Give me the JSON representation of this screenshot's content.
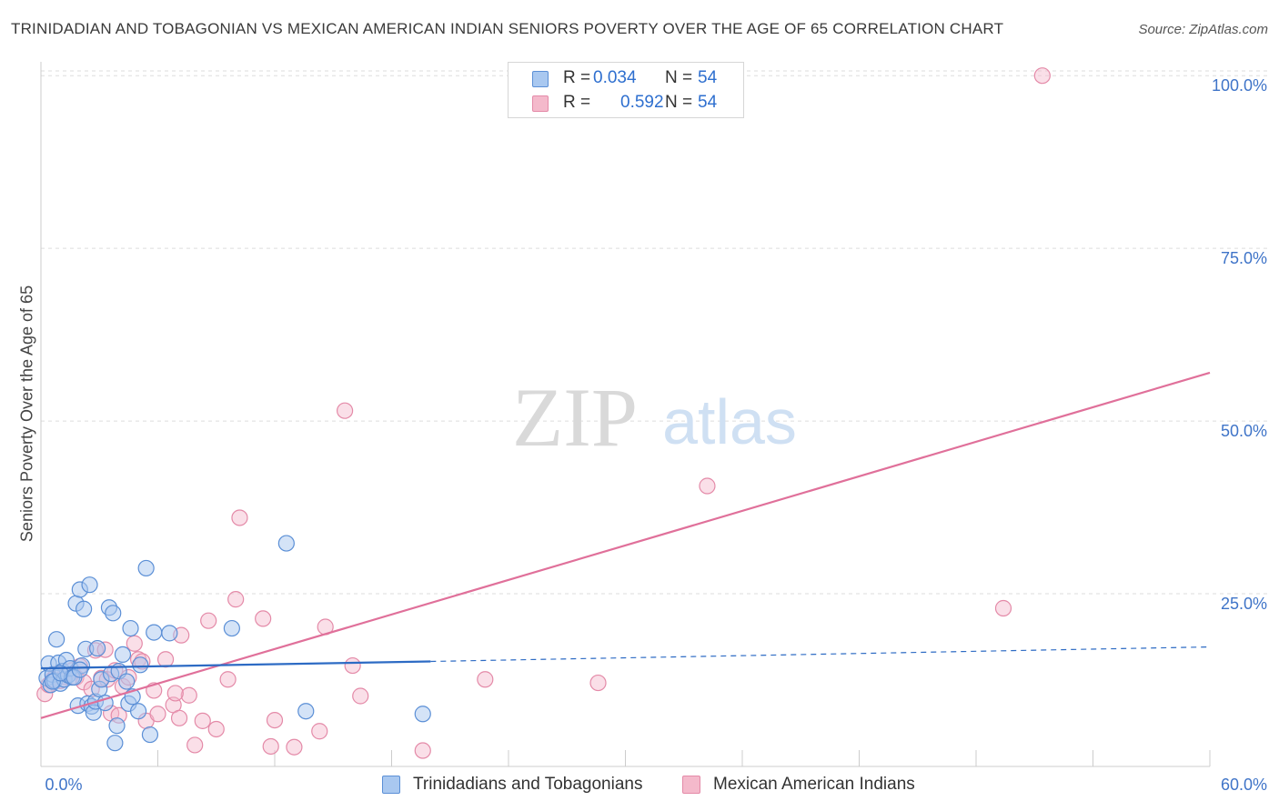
{
  "title": "TRINIDADIAN AND TOBAGONIAN VS MEXICAN AMERICAN INDIAN SENIORS POVERTY OVER THE AGE OF 65 CORRELATION CHART",
  "source": "Source: ZipAtlas.com",
  "watermark": {
    "zip": "ZIP",
    "atlas": "atlas"
  },
  "colors": {
    "blue_fill": "#a9c8f0",
    "blue_stroke": "#5b8fd6",
    "blue_line": "#2d6bc4",
    "pink_fill": "#f4b9cb",
    "pink_stroke": "#e48aa8",
    "pink_line": "#e0709a",
    "tick_text": "#3f74c8",
    "grid": "#dddddd"
  },
  "legend": {
    "r_label": "R =",
    "n_label": "N =",
    "rows": [
      {
        "r": "0.034",
        "n": "54",
        "color": "blue"
      },
      {
        "r": "0.592",
        "n": "54",
        "color": "pink"
      }
    ]
  },
  "bottom_legend": {
    "blue": "Trinidadians and Tobagonians",
    "pink": "Mexican American Indians"
  },
  "chart_data": {
    "type": "scatter",
    "title": "TRINIDADIAN AND TOBAGONIAN VS MEXICAN AMERICAN INDIAN SENIORS POVERTY OVER THE AGE OF 65 CORRELATION CHART",
    "xlabel": "",
    "ylabel": "Seniors Poverty Over the Age of 65",
    "xlim": [
      0,
      60
    ],
    "ylim": [
      0,
      102
    ],
    "x_tick_labels": {
      "min": "0.0%",
      "max": "60.0%"
    },
    "y_ticks": [
      25,
      50,
      75,
      100
    ],
    "y_tick_labels": [
      "25.0%",
      "50.0%",
      "75.0%",
      "100.0%"
    ],
    "series": [
      {
        "name": "Trinidadians and Tobagonians",
        "color": "blue",
        "trend": {
          "x0": 0,
          "y0": 14.2,
          "x1": 20,
          "y1": 15.2,
          "dash_to_x": 60,
          "dash_to_y": 17.3
        },
        "points": [
          [
            0.3,
            12.8
          ],
          [
            0.4,
            14.9
          ],
          [
            0.5,
            11.8
          ],
          [
            0.6,
            13.3
          ],
          [
            0.7,
            12.4
          ],
          [
            0.8,
            18.4
          ],
          [
            0.9,
            15.0
          ],
          [
            1.0,
            12.0
          ],
          [
            1.1,
            13.8
          ],
          [
            1.2,
            12.6
          ],
          [
            1.3,
            15.4
          ],
          [
            1.4,
            13.2
          ],
          [
            1.5,
            14.2
          ],
          [
            1.6,
            12.9
          ],
          [
            1.8,
            23.6
          ],
          [
            1.9,
            8.8
          ],
          [
            2.0,
            25.6
          ],
          [
            2.1,
            14.6
          ],
          [
            2.2,
            22.8
          ],
          [
            2.3,
            17.0
          ],
          [
            2.4,
            9.1
          ],
          [
            2.5,
            26.3
          ],
          [
            2.6,
            8.7
          ],
          [
            2.7,
            7.8
          ],
          [
            2.8,
            9.4
          ],
          [
            2.9,
            17.1
          ],
          [
            3.0,
            11.2
          ],
          [
            3.1,
            12.6
          ],
          [
            3.3,
            9.2
          ],
          [
            3.5,
            23.0
          ],
          [
            3.6,
            13.4
          ],
          [
            3.7,
            22.2
          ],
          [
            3.9,
            5.9
          ],
          [
            4.0,
            13.8
          ],
          [
            4.2,
            16.2
          ],
          [
            4.4,
            12.3
          ],
          [
            4.5,
            9.1
          ],
          [
            4.6,
            20.0
          ],
          [
            4.7,
            10.1
          ],
          [
            5.0,
            8.0
          ],
          [
            5.1,
            14.7
          ],
          [
            5.4,
            28.7
          ],
          [
            5.6,
            4.6
          ],
          [
            6.6,
            19.3
          ],
          [
            3.8,
            3.4
          ],
          [
            9.8,
            20.0
          ],
          [
            12.6,
            32.3
          ],
          [
            13.6,
            8.0
          ],
          [
            19.6,
            7.6
          ],
          [
            0.6,
            12.3
          ],
          [
            1.0,
            13.5
          ],
          [
            1.7,
            12.9
          ],
          [
            2.0,
            14.0
          ],
          [
            5.8,
            19.4
          ]
        ]
      },
      {
        "name": "Mexican American Indians",
        "color": "pink",
        "trend": {
          "x0": 0,
          "y0": 7.0,
          "x1": 60,
          "y1": 57.0
        },
        "points": [
          [
            0.2,
            10.5
          ],
          [
            0.4,
            11.8
          ],
          [
            0.6,
            12.6
          ],
          [
            0.8,
            13.4
          ],
          [
            1.0,
            12.4
          ],
          [
            1.2,
            13.0
          ],
          [
            1.6,
            13.9
          ],
          [
            1.8,
            12.9
          ],
          [
            2.0,
            14.5
          ],
          [
            2.2,
            12.2
          ],
          [
            2.6,
            11.2
          ],
          [
            2.8,
            16.8
          ],
          [
            3.1,
            12.8
          ],
          [
            3.4,
            12.6
          ],
          [
            3.6,
            7.7
          ],
          [
            3.8,
            13.9
          ],
          [
            4.0,
            7.4
          ],
          [
            4.2,
            11.6
          ],
          [
            4.5,
            12.9
          ],
          [
            4.8,
            17.8
          ],
          [
            5.0,
            15.5
          ],
          [
            5.2,
            15.2
          ],
          [
            5.4,
            6.6
          ],
          [
            5.8,
            11.0
          ],
          [
            6.0,
            7.6
          ],
          [
            6.4,
            15.5
          ],
          [
            6.8,
            8.9
          ],
          [
            7.1,
            7.0
          ],
          [
            7.6,
            10.3
          ],
          [
            7.9,
            3.1
          ],
          [
            8.3,
            6.6
          ],
          [
            8.6,
            21.1
          ],
          [
            9.0,
            5.4
          ],
          [
            9.6,
            12.6
          ],
          [
            10.0,
            24.2
          ],
          [
            10.2,
            36.0
          ],
          [
            11.4,
            21.4
          ],
          [
            11.8,
            2.9
          ],
          [
            12.0,
            6.7
          ],
          [
            13.0,
            2.8
          ],
          [
            14.3,
            5.1
          ],
          [
            14.6,
            20.2
          ],
          [
            15.6,
            51.5
          ],
          [
            16.0,
            14.6
          ],
          [
            16.4,
            10.2
          ],
          [
            19.6,
            2.3
          ],
          [
            22.8,
            12.6
          ],
          [
            28.6,
            12.1
          ],
          [
            34.2,
            40.6
          ],
          [
            49.4,
            22.9
          ],
          [
            51.4,
            100.0
          ],
          [
            7.2,
            19.0
          ],
          [
            3.3,
            16.9
          ],
          [
            6.9,
            10.6
          ]
        ]
      }
    ]
  }
}
